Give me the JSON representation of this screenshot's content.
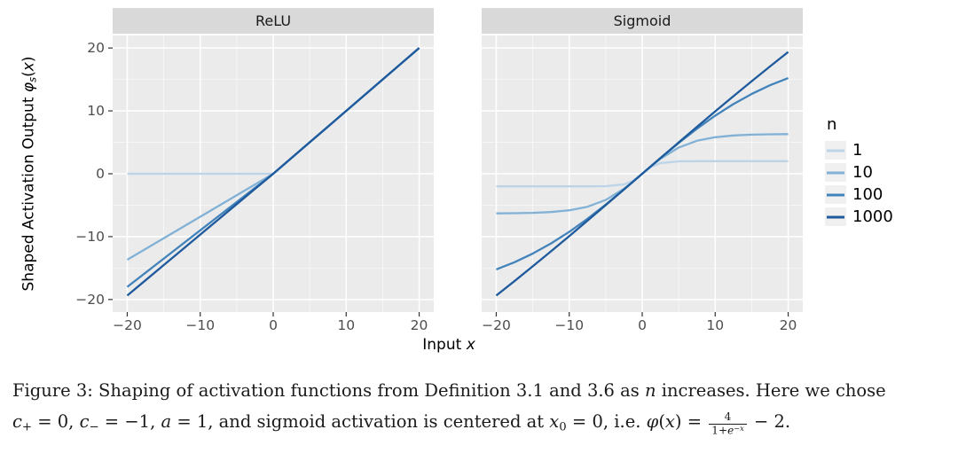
{
  "figure": {
    "y_axis_label_segments": [
      {
        "t": "Shaped Activation Output "
      },
      {
        "t": "φ",
        "i": true
      },
      {
        "t": "s",
        "sub": true,
        "i": true
      },
      {
        "t": "("
      },
      {
        "t": "x",
        "i": true
      },
      {
        "t": ")"
      }
    ],
    "x_axis_label_segments": [
      {
        "t": "Input "
      },
      {
        "t": "x",
        "i": true
      }
    ],
    "legend": {
      "title": "n",
      "items": [
        {
          "label": "1",
          "color": "#bdd4e8"
        },
        {
          "label": "10",
          "color": "#82b1d6"
        },
        {
          "label": "100",
          "color": "#4383bb"
        },
        {
          "label": "1000",
          "color": "#1e5a9c"
        }
      ]
    },
    "colors": {
      "panel_bg": "#ebebeb",
      "strip_bg": "#d9d9d9",
      "grid_major": "#ffffff",
      "grid_minor": "#ffffff",
      "tick_mark": "#333333",
      "tick_text": "#4d4d4d",
      "legend_key_bg": "#f0f0f0"
    }
  },
  "chart_data": [
    {
      "type": "line",
      "title": "ReLU",
      "xlabel": "Input x",
      "ylabel": "Shaped Activation Output φ_s(x)",
      "xlim": [
        -22,
        22
      ],
      "ylim": [
        -22,
        22
      ],
      "xticks": [
        -20,
        -10,
        0,
        10,
        20
      ],
      "yticks": [
        20,
        10,
        0,
        -10,
        -20
      ],
      "xtick_labels": [
        "−20",
        "−10",
        "0",
        "10",
        "20"
      ],
      "ytick_labels": [
        "20",
        "10",
        "0",
        "−10",
        "−20"
      ],
      "minor_ticks": [
        -15,
        -5,
        5,
        15
      ],
      "grid": true,
      "show_y_tick_labels": true,
      "x": [
        -20,
        -17.5,
        -15,
        -12.5,
        -10,
        -7.5,
        -5,
        -2.5,
        -1.25,
        0,
        1.25,
        2.5,
        5,
        7.5,
        10,
        12.5,
        15,
        17.5,
        20
      ],
      "series": [
        {
          "name": "1",
          "color": "#bdd4e8",
          "values": [
            0,
            0,
            0,
            0,
            0,
            0,
            0,
            0,
            0,
            0,
            1.25,
            2.5,
            5,
            7.5,
            10,
            12.5,
            15,
            17.5,
            20
          ]
        },
        {
          "name": "10",
          "color": "#82b1d6",
          "values": [
            -13.68,
            -11.97,
            -10.26,
            -8.55,
            -6.84,
            -5.13,
            -3.42,
            -1.71,
            -0.85,
            0,
            1.25,
            2.5,
            5,
            7.5,
            10,
            12.5,
            15,
            17.5,
            20
          ]
        },
        {
          "name": "100",
          "color": "#4383bb",
          "values": [
            -18,
            -15.75,
            -13.5,
            -11.25,
            -9,
            -6.75,
            -4.5,
            -2.25,
            -1.13,
            0,
            1.25,
            2.5,
            5,
            7.5,
            10,
            12.5,
            15,
            17.5,
            20
          ]
        },
        {
          "name": "1000",
          "color": "#1e5a9c",
          "values": [
            -19.37,
            -16.95,
            -14.53,
            -12.11,
            -9.68,
            -7.26,
            -4.84,
            -2.42,
            -1.21,
            0,
            1.25,
            2.5,
            5,
            7.5,
            10,
            12.5,
            15,
            17.5,
            20
          ]
        }
      ],
      "legend_position": "right"
    },
    {
      "type": "line",
      "title": "Sigmoid",
      "xlabel": "Input x",
      "ylabel": "Shaped Activation Output φ_s(x)",
      "xlim": [
        -22,
        22
      ],
      "ylim": [
        -22,
        22
      ],
      "xticks": [
        -20,
        -10,
        0,
        10,
        20
      ],
      "yticks": [
        20,
        10,
        0,
        -10,
        -20
      ],
      "xtick_labels": [
        "−20",
        "−10",
        "0",
        "10",
        "20"
      ],
      "ytick_labels": [
        "20",
        "10",
        "0",
        "−10",
        "−20"
      ],
      "minor_ticks": [
        -15,
        -5,
        5,
        15
      ],
      "grid": true,
      "show_y_tick_labels": false,
      "x": [
        -20,
        -17.5,
        -15,
        -12.5,
        -10,
        -7.5,
        -5,
        -2.5,
        -1.25,
        0,
        1.25,
        2.5,
        5,
        7.5,
        10,
        12.5,
        15,
        17.5,
        20
      ],
      "series": [
        {
          "name": "1",
          "color": "#bdd4e8",
          "values": [
            -2,
            -2,
            -2,
            -2,
            -2,
            -2,
            -1.97,
            -1.7,
            -1.11,
            0,
            1.11,
            1.7,
            1.97,
            2,
            2,
            2,
            2,
            2,
            2
          ]
        },
        {
          "name": "10",
          "color": "#82b1d6",
          "values": [
            -6.3,
            -6.28,
            -6.22,
            -6.09,
            -5.81,
            -5.25,
            -4.17,
            -2.38,
            -1.23,
            0,
            1.23,
            2.38,
            4.17,
            5.25,
            5.81,
            6.09,
            6.22,
            6.28,
            6.3
          ]
        },
        {
          "name": "100",
          "color": "#4383bb",
          "values": [
            -15.23,
            -14.08,
            -12.7,
            -11.09,
            -9.24,
            -7.17,
            -4.9,
            -2.49,
            -1.25,
            0,
            1.25,
            2.49,
            4.9,
            7.17,
            9.24,
            11.09,
            12.7,
            14.08,
            15.23
          ]
        },
        {
          "name": "1000",
          "color": "#1e5a9c",
          "values": [
            -19.37,
            -17.07,
            -14.72,
            -12.34,
            -9.92,
            -7.46,
            -4.99,
            -2.5,
            -1.25,
            0,
            1.25,
            2.5,
            4.99,
            7.46,
            9.92,
            12.34,
            14.72,
            17.07,
            19.37
          ]
        }
      ],
      "legend_position": "right"
    }
  ],
  "caption": {
    "line1_segments": [
      {
        "t": "Figure 3:  Shaping of activation functions from Definition 3.1 and 3.6 as "
      },
      {
        "t": "n",
        "i": true
      },
      {
        "t": " increases.  Here we chose"
      }
    ],
    "line2_segments": [
      {
        "t": "c",
        "i": true
      },
      {
        "t": "+",
        "sub": true
      },
      {
        "t": " = 0, "
      },
      {
        "t": "c",
        "i": true
      },
      {
        "t": "−",
        "sub": true
      },
      {
        "t": " = −1, "
      },
      {
        "t": "a",
        "i": true
      },
      {
        "t": " = 1, and sigmoid activation is centered at "
      },
      {
        "t": "x",
        "i": true
      },
      {
        "t": "0",
        "sub": true
      },
      {
        "t": " = 0, i.e. "
      },
      {
        "t": "φ",
        "i": true
      },
      {
        "t": "("
      },
      {
        "t": "x",
        "i": true
      },
      {
        "t": ") = "
      },
      {
        "frac": {
          "num": [
            {
              "t": "4"
            }
          ],
          "den": [
            {
              "t": "1+"
            },
            {
              "t": "e",
              "i": true
            },
            {
              "t": "−x",
              "sup": true,
              "i": true
            }
          ]
        }
      },
      {
        "t": " − 2."
      }
    ]
  }
}
